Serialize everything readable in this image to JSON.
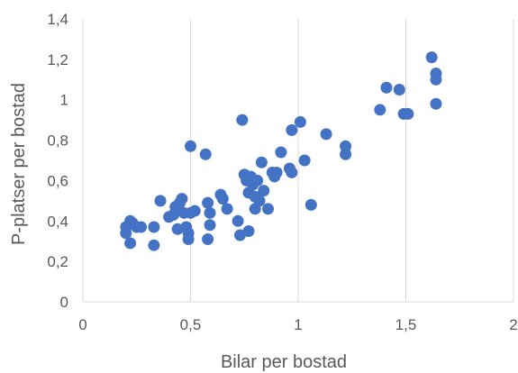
{
  "chart_data": {
    "type": "scatter",
    "title": "",
    "xlabel": "Bilar per bostad",
    "ylabel": "P-platser per bostad",
    "xlim": [
      0,
      2
    ],
    "ylim": [
      0,
      1.4
    ],
    "x_ticks": [
      0,
      0.5,
      1,
      1.5,
      2
    ],
    "x_tick_labels": [
      "0",
      "0,5",
      "1",
      "1,5",
      "2"
    ],
    "y_ticks": [
      0,
      0.2,
      0.4,
      0.6,
      0.8,
      1.0,
      1.2,
      1.4
    ],
    "y_tick_labels": [
      "0",
      "0,2",
      "0,4",
      "0,6",
      "0,8",
      "1",
      "1,2",
      "1,4"
    ],
    "grid": "vertical",
    "legend": "none",
    "marker_color": "#4472c4",
    "series": [
      {
        "points": [
          [
            0.2,
            0.34
          ],
          [
            0.2,
            0.37
          ],
          [
            0.22,
            0.29
          ],
          [
            0.22,
            0.4
          ],
          [
            0.23,
            0.39
          ],
          [
            0.25,
            0.37
          ],
          [
            0.27,
            0.37
          ],
          [
            0.33,
            0.28
          ],
          [
            0.33,
            0.37
          ],
          [
            0.36,
            0.5
          ],
          [
            0.4,
            0.42
          ],
          [
            0.42,
            0.43
          ],
          [
            0.43,
            0.47
          ],
          [
            0.44,
            0.36
          ],
          [
            0.45,
            0.49
          ],
          [
            0.46,
            0.51
          ],
          [
            0.47,
            0.44
          ],
          [
            0.48,
            0.37
          ],
          [
            0.49,
            0.31
          ],
          [
            0.49,
            0.34
          ],
          [
            0.5,
            0.44
          ],
          [
            0.5,
            0.77
          ],
          [
            0.52,
            0.45
          ],
          [
            0.57,
            0.73
          ],
          [
            0.58,
            0.31
          ],
          [
            0.58,
            0.49
          ],
          [
            0.59,
            0.38
          ],
          [
            0.59,
            0.44
          ],
          [
            0.64,
            0.53
          ],
          [
            0.65,
            0.51
          ],
          [
            0.67,
            0.46
          ],
          [
            0.72,
            0.4
          ],
          [
            0.73,
            0.33
          ],
          [
            0.74,
            0.9
          ],
          [
            0.75,
            0.63
          ],
          [
            0.76,
            0.6
          ],
          [
            0.77,
            0.54
          ],
          [
            0.77,
            0.35
          ],
          [
            0.78,
            0.62
          ],
          [
            0.79,
            0.58
          ],
          [
            0.8,
            0.52
          ],
          [
            0.8,
            0.46
          ],
          [
            0.81,
            0.6
          ],
          [
            0.82,
            0.5
          ],
          [
            0.83,
            0.69
          ],
          [
            0.84,
            0.55
          ],
          [
            0.86,
            0.46
          ],
          [
            0.88,
            0.64
          ],
          [
            0.89,
            0.62
          ],
          [
            0.9,
            0.64
          ],
          [
            0.92,
            0.74
          ],
          [
            0.96,
            0.66
          ],
          [
            0.97,
            0.85
          ],
          [
            0.97,
            0.64
          ],
          [
            1.01,
            0.89
          ],
          [
            1.03,
            0.7
          ],
          [
            1.06,
            0.48
          ],
          [
            1.13,
            0.83
          ],
          [
            1.22,
            0.77
          ],
          [
            1.22,
            0.73
          ],
          [
            1.38,
            0.95
          ],
          [
            1.41,
            1.06
          ],
          [
            1.47,
            1.05
          ],
          [
            1.49,
            0.93
          ],
          [
            1.51,
            0.93
          ],
          [
            1.62,
            1.21
          ],
          [
            1.64,
            1.13
          ],
          [
            1.64,
            1.1
          ],
          [
            1.64,
            0.98
          ]
        ]
      }
    ]
  }
}
